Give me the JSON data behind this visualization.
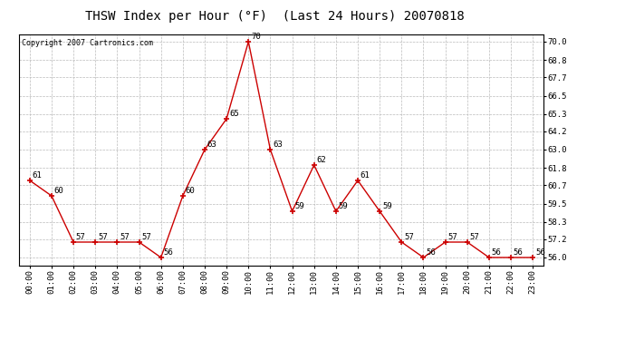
{
  "title": "THSW Index per Hour (°F)  (Last 24 Hours) 20070818",
  "copyright": "Copyright 2007 Cartronics.com",
  "hours": [
    "00:00",
    "01:00",
    "02:00",
    "03:00",
    "04:00",
    "05:00",
    "06:00",
    "07:00",
    "08:00",
    "09:00",
    "10:00",
    "11:00",
    "12:00",
    "13:00",
    "14:00",
    "15:00",
    "16:00",
    "17:00",
    "18:00",
    "19:00",
    "20:00",
    "21:00",
    "22:00",
    "23:00"
  ],
  "values": [
    61,
    60,
    57,
    57,
    57,
    57,
    56,
    60,
    63,
    65,
    70,
    63,
    59,
    62,
    59,
    61,
    59,
    57,
    56,
    57,
    57,
    56,
    56,
    56
  ],
  "line_color": "#cc0000",
  "marker_color": "#cc0000",
  "bg_color": "#ffffff",
  "grid_color": "#bbbbbb",
  "ylim_min": 55.5,
  "ylim_max": 70.5,
  "yticks": [
    56.0,
    57.2,
    58.3,
    59.5,
    60.7,
    61.8,
    63.0,
    64.2,
    65.3,
    66.5,
    67.7,
    68.8,
    70.0
  ],
  "label_fontsize": 6.5,
  "title_fontsize": 10,
  "copyright_fontsize": 6
}
